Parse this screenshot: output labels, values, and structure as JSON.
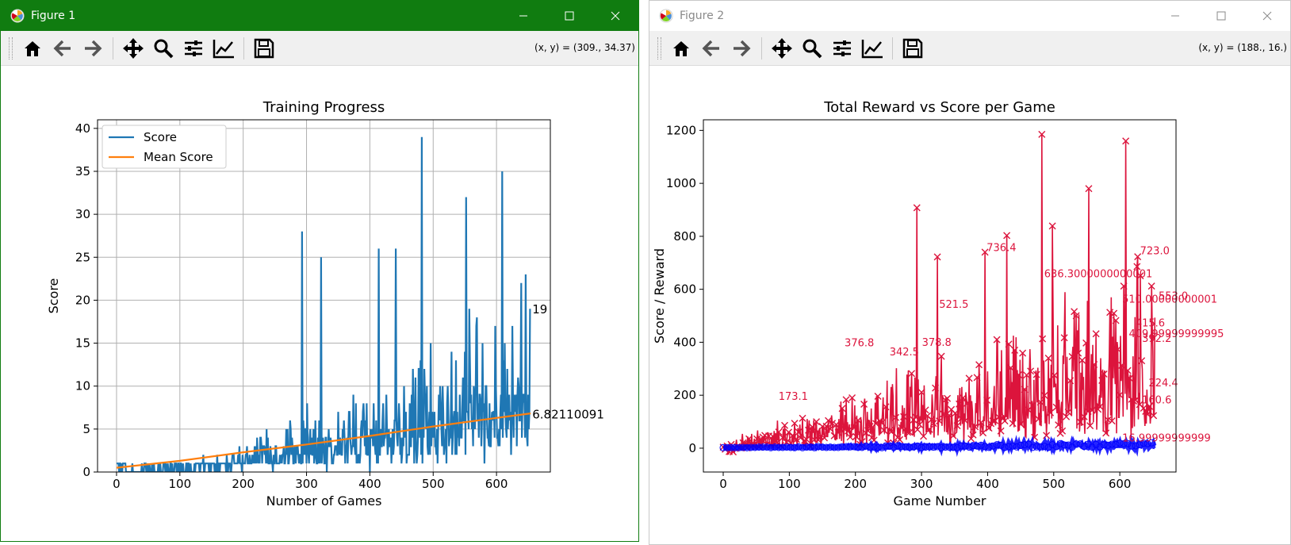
{
  "windows": [
    {
      "title": "Figure 1",
      "coords": "(x, y) = (309., 34.37)",
      "toolbar": [
        "home-icon",
        "back-arrow-icon",
        "forward-arrow-icon",
        "pan-move-icon",
        "zoom-magnifier-icon",
        "configure-subplots-icon",
        "edit-axis-icon",
        "save-floppy-icon"
      ]
    },
    {
      "title": "Figure 2",
      "coords": "(x, y) = (188., 16.)",
      "toolbar": [
        "home-icon",
        "back-arrow-icon",
        "forward-arrow-icon",
        "pan-move-icon",
        "zoom-magnifier-icon",
        "configure-subplots-icon",
        "edit-axis-icon",
        "save-floppy-icon"
      ]
    }
  ],
  "colors": {
    "active_title": "#107c10",
    "score": "#1f77b4",
    "mean": "#ff7f0e",
    "reward": "#dc143c",
    "game_score": "#0000ff"
  },
  "chart_data": [
    {
      "type": "line",
      "title": "Training Progress",
      "xlabel": "Number of Games",
      "ylabel": "Score",
      "xlim": [
        -30,
        685
      ],
      "ylim": [
        0,
        41
      ],
      "xticks": [
        0,
        100,
        200,
        300,
        400,
        500,
        600
      ],
      "yticks": [
        0,
        5,
        10,
        15,
        20,
        25,
        30,
        35,
        40
      ],
      "grid": true,
      "legend": "top-left",
      "n_games": 654,
      "series": [
        {
          "name": "Score",
          "peaks": [
            [
              293,
              28
            ],
            [
              323,
              25
            ],
            [
              414,
              26
            ],
            [
              441,
              26
            ],
            [
              482,
              39
            ],
            [
              552,
              32
            ],
            [
              609,
              35
            ]
          ],
          "last_value": 19
        },
        {
          "name": "Mean Score",
          "x": [
            0,
            100,
            200,
            300,
            400,
            500,
            600,
            654
          ],
          "values": [
            0.5,
            1.3,
            2.3,
            3.2,
            4.2,
            5.3,
            6.3,
            6.82
          ]
        }
      ],
      "annotations": [
        {
          "text": "19",
          "x": 654,
          "y": 19
        },
        {
          "text": "6.82110091",
          "x": 654,
          "y": 6.8
        }
      ]
    },
    {
      "type": "line",
      "title": "Total Reward vs Score per Game",
      "xlabel": "Game Number",
      "ylabel": "Score / Reward",
      "xlim": [
        -30,
        685
      ],
      "ylim": [
        -90,
        1240
      ],
      "xticks": [
        0,
        100,
        200,
        300,
        400,
        500,
        600
      ],
      "yticks": [
        0,
        200,
        400,
        600,
        800,
        1000,
        1200
      ],
      "grid": false,
      "series": [
        {
          "name": "",
          "marker": "x",
          "peaks": [
            [
              293,
              908
            ],
            [
              324,
              722
            ],
            [
              396,
              740
            ],
            [
              429,
              803
            ],
            [
              482,
              1185
            ],
            [
              498,
              839
            ],
            [
              553,
              980
            ],
            [
              609,
              1160
            ],
            [
              627,
              723
            ]
          ]
        },
        {
          "name": "",
          "marker": "o"
        }
      ],
      "annotations": [
        {
          "text": "723.0",
          "x": 627,
          "y": 723
        },
        {
          "text": "736.4",
          "x": 395,
          "y": 736
        },
        {
          "text": "636.3000000000001",
          "x": 482,
          "y": 636
        },
        {
          "text": "521.5",
          "x": 323,
          "y": 521
        },
        {
          "text": "553.0",
          "x": 655,
          "y": 553
        },
        {
          "text": "510.00000000001",
          "x": 600,
          "y": 540
        },
        {
          "text": "376.8",
          "x": 180,
          "y": 376
        },
        {
          "text": "342.5",
          "x": 248,
          "y": 342
        },
        {
          "text": "378.8",
          "x": 297,
          "y": 378
        },
        {
          "text": "415.6",
          "x": 620,
          "y": 450
        },
        {
          "text": "409.99999999995",
          "x": 610,
          "y": 410
        },
        {
          "text": "392.2",
          "x": 630,
          "y": 392
        },
        {
          "text": "173.1",
          "x": 80,
          "y": 173
        },
        {
          "text": "224.4",
          "x": 640,
          "y": 224
        },
        {
          "text": "160.6",
          "x": 630,
          "y": 160
        },
        {
          "text": "16.99999999999",
          "x": 600,
          "y": 16
        }
      ]
    }
  ]
}
